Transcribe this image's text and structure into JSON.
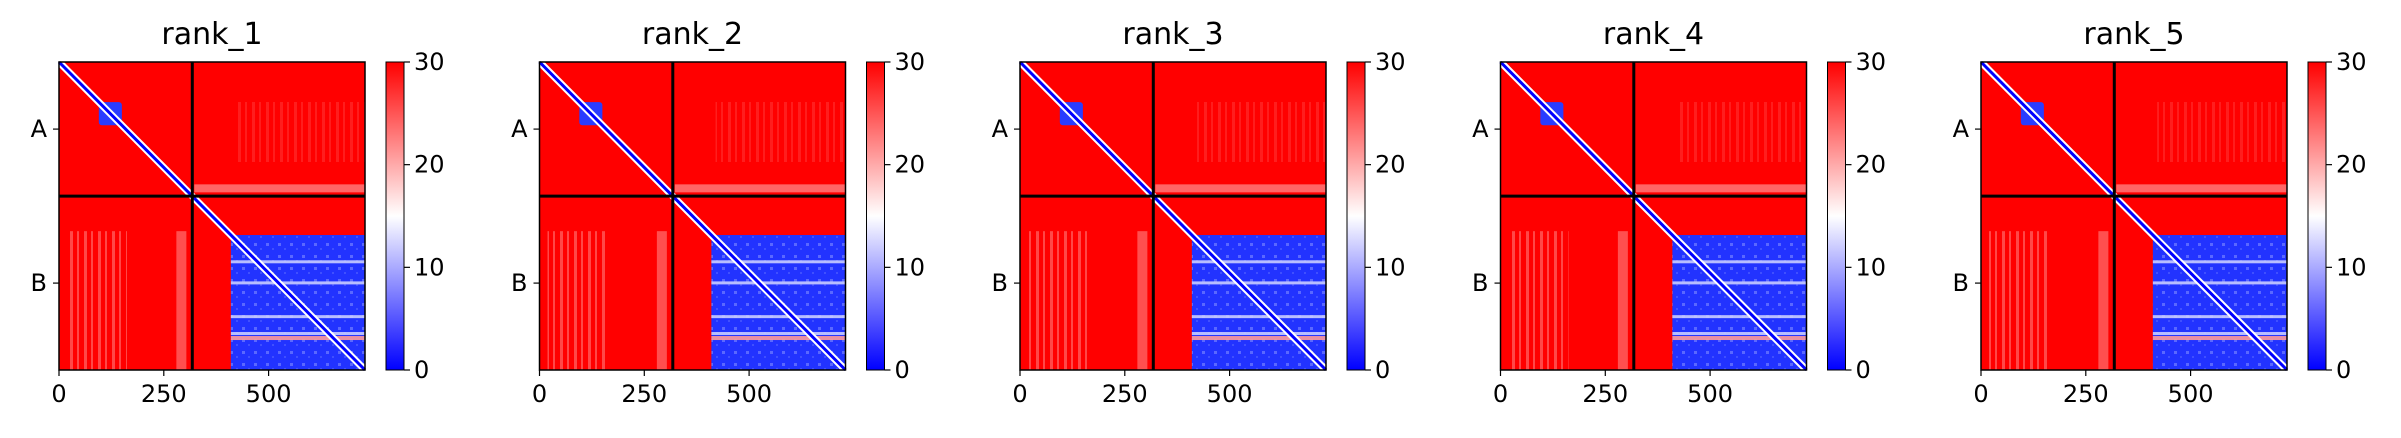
{
  "chart_data": {
    "type": "heatmap",
    "colormap": {
      "low": "#0000ff",
      "mid": "#ffffff",
      "high": "#ff0000"
    },
    "colorbar": {
      "ticks": [
        0,
        10,
        20,
        30
      ],
      "range": [
        0,
        30
      ]
    },
    "matrix_size": 730,
    "chain_break": 318,
    "chains": [
      "A",
      "B"
    ],
    "xticks": [
      0,
      250,
      500
    ],
    "panels": [
      {
        "title": "rank_1"
      },
      {
        "title": "rank_2"
      },
      {
        "title": "rank_3"
      },
      {
        "title": "rank_4"
      },
      {
        "title": "rank_5"
      }
    ]
  }
}
